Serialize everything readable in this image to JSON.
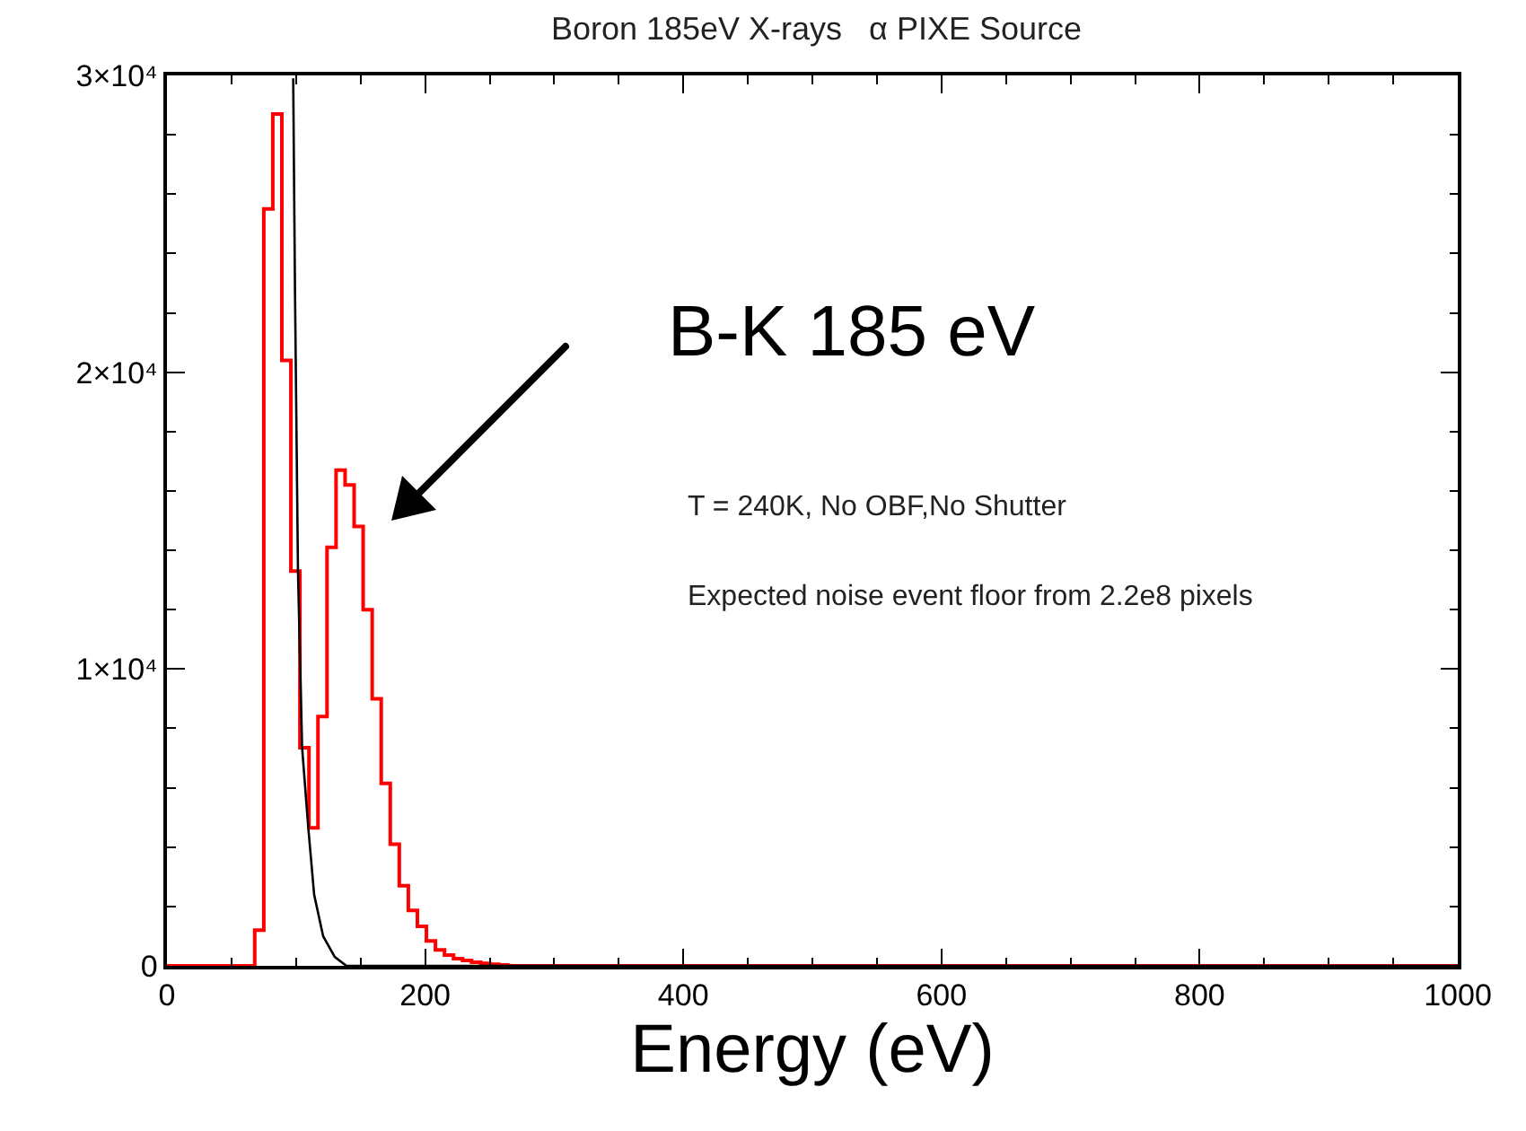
{
  "chart_data": {
    "type": "histogram",
    "title": "Boron 185eV X-rays   α PIXE Source",
    "xlabel": "Energy (eV)",
    "bins": [
      0,
      68,
      75,
      82,
      89,
      96,
      103,
      110,
      117,
      124,
      131,
      138,
      145,
      152,
      159,
      166,
      173,
      180,
      187,
      194,
      201,
      208,
      215,
      222,
      229,
      236,
      243,
      250,
      257,
      264,
      1000
    ],
    "values": [
      0,
      1200,
      25500,
      28700,
      20400,
      13300,
      7350,
      4650,
      8400,
      14100,
      16700,
      16200,
      14800,
      12000,
      9000,
      6150,
      4100,
      2700,
      1870,
      1330,
      840,
      540,
      360,
      240,
      180,
      120,
      80,
      50,
      30,
      0
    ],
    "color": "#ff0000",
    "series": [
      {
        "type": "line",
        "color": "#000000",
        "x": [
          97.8,
          99.2,
          101.5,
          104.7,
          109.5,
          114,
          121,
          130,
          139,
          1000
        ],
        "values": [
          29900,
          22700,
          13300,
          7350,
          4650,
          2400,
          1000,
          300,
          0,
          0
        ]
      }
    ],
    "xlim": [
      0,
      1000
    ],
    "ylim": [
      0,
      30000
    ],
    "xticks": [
      0,
      {
        "value": 50,
        "label": null
      },
      200,
      {
        "value": 100,
        "label": null
      },
      {
        "value": 150,
        "label": null
      },
      {
        "value": 250,
        "label": null
      },
      {
        "value": 300,
        "label": null
      },
      {
        "value": 350,
        "label": null
      },
      400,
      {
        "value": 450,
        "label": null
      },
      {
        "value": 500,
        "label": null
      },
      {
        "value": 550,
        "label": null
      },
      600,
      {
        "value": 650,
        "label": null
      },
      {
        "value": 700,
        "label": null
      },
      {
        "value": 750,
        "label": null
      },
      800,
      {
        "value": 850,
        "label": null
      },
      {
        "value": 900,
        "label": null
      },
      {
        "value": 950,
        "label": null
      },
      1000
    ],
    "yticks": [
      {
        "value": 0,
        "label": "0"
      },
      {
        "value": 10000,
        "label": "1×10⁴"
      },
      {
        "value": 20000,
        "label": "2×10⁴"
      },
      {
        "value": 30000,
        "label": "3×10⁴"
      },
      {
        "value": 2000,
        "label": null
      },
      {
        "value": 4000,
        "label": null
      },
      {
        "value": 6000,
        "label": null
      },
      {
        "value": 8000,
        "label": null
      },
      {
        "value": 12000,
        "label": null
      },
      {
        "value": 14000,
        "label": null
      },
      {
        "value": 16000,
        "label": null
      },
      {
        "value": 18000,
        "label": null
      },
      {
        "value": 22000,
        "label": null
      },
      {
        "value": 24000,
        "label": null
      },
      {
        "value": 26000,
        "label": null
      },
      {
        "value": 28000,
        "label": null
      }
    ],
    "annotations": [
      "B-K 185 eV",
      "T = 240K, No OBF,No Shutter",
      "Expected noise event floor from 2.2e8 pixels"
    ],
    "grid": false
  }
}
